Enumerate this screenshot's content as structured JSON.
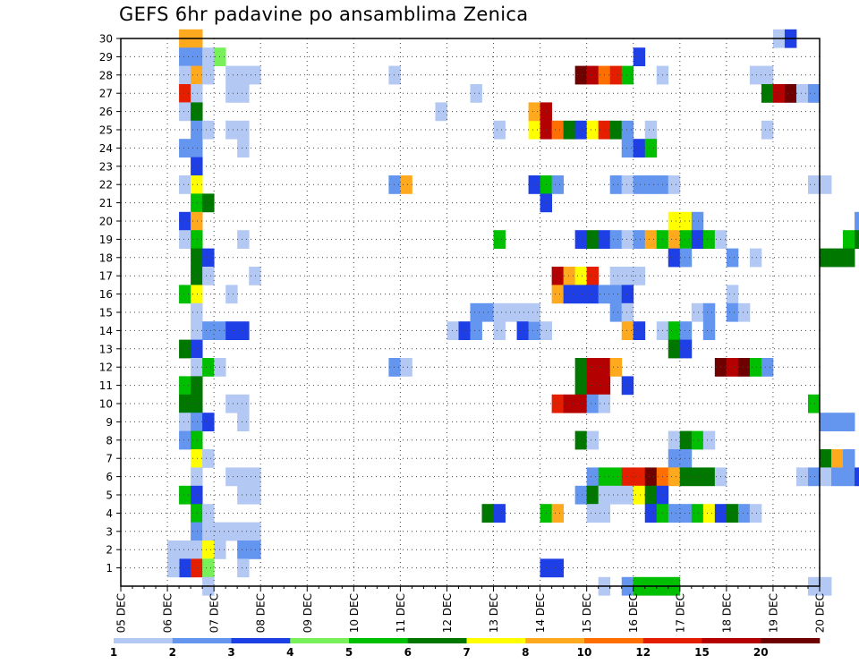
{
  "title": "GEFS 6hr padavine po ansamblima Zenica",
  "chart_data": {
    "type": "heatmap",
    "title": "GEFS 6hr padavine po ansamblima Zenica",
    "x_ticks": [
      "05 DEC",
      "06 DEC",
      "07 DEC",
      "08 DEC",
      "09 DEC",
      "10 DEC",
      "11 DEC",
      "12 DEC",
      "13 DEC",
      "14 DEC",
      "15 DEC",
      "16 DEC",
      "17 DEC",
      "18 DEC",
      "19 DEC",
      "20 DEC"
    ],
    "y_ticks": [
      1,
      2,
      3,
      4,
      5,
      6,
      7,
      8,
      9,
      10,
      11,
      12,
      13,
      14,
      15,
      16,
      17,
      18,
      19,
      20,
      21,
      22,
      23,
      24,
      25,
      26,
      27,
      28,
      29,
      30
    ],
    "xlim": [
      0,
      60
    ],
    "ylim": [
      0,
      30
    ],
    "grid": true,
    "cells_note": "cells: [x_step_index (6-hour steps from 05 DEC 00z), ensemble_member, class_index]",
    "legend": {
      "labels": [
        "1",
        "2",
        "3",
        "4",
        "5",
        "6",
        "7",
        "8",
        "10",
        "12",
        "15",
        "20"
      ],
      "colors": [
        "#b4c8f4",
        "#6496f0",
        "#1e3ee6",
        "#78f05a",
        "#00be00",
        "#007800",
        "#ffff00",
        "#ffaa1e",
        "#ff6e00",
        "#e61e00",
        "#b40000",
        "#6e0000"
      ]
    },
    "cells": [
      [
        5,
        30,
        7
      ],
      [
        5,
        29,
        1
      ],
      [
        5,
        28,
        0
      ],
      [
        5,
        27,
        9
      ],
      [
        5,
        26,
        0
      ],
      [
        5,
        24,
        1
      ],
      [
        5,
        22,
        0
      ],
      [
        5,
        20,
        2
      ],
      [
        5,
        19,
        0
      ],
      [
        5,
        16,
        4
      ],
      [
        5,
        13,
        5
      ],
      [
        5,
        11,
        4
      ],
      [
        5,
        10,
        5
      ],
      [
        5,
        9,
        0
      ],
      [
        5,
        8,
        1
      ],
      [
        5,
        5,
        4
      ],
      [
        5,
        2,
        0
      ],
      [
        5,
        1,
        2
      ],
      [
        4,
        1,
        0
      ],
      [
        4,
        2,
        0
      ],
      [
        6,
        30,
        7
      ],
      [
        6,
        29,
        1
      ],
      [
        6,
        28,
        7
      ],
      [
        6,
        27,
        0
      ],
      [
        6,
        26,
        5
      ],
      [
        6,
        25,
        1
      ],
      [
        6,
        24,
        1
      ],
      [
        6,
        23,
        2
      ],
      [
        6,
        22,
        6
      ],
      [
        6,
        21,
        4
      ],
      [
        6,
        20,
        7
      ],
      [
        6,
        19,
        4
      ],
      [
        6,
        18,
        5
      ],
      [
        6,
        17,
        5
      ],
      [
        6,
        16,
        6
      ],
      [
        6,
        15,
        0
      ],
      [
        6,
        14,
        0
      ],
      [
        6,
        13,
        2
      ],
      [
        6,
        12,
        0
      ],
      [
        6,
        11,
        5
      ],
      [
        6,
        10,
        5
      ],
      [
        6,
        9,
        1
      ],
      [
        6,
        8,
        4
      ],
      [
        6,
        7,
        6
      ],
      [
        6,
        6,
        0
      ],
      [
        6,
        5,
        2
      ],
      [
        6,
        4,
        4
      ],
      [
        6,
        3,
        1
      ],
      [
        6,
        2,
        0
      ],
      [
        6,
        1,
        9
      ],
      [
        7,
        29,
        0
      ],
      [
        7,
        28,
        0
      ],
      [
        7,
        25,
        0
      ],
      [
        7,
        21,
        5
      ],
      [
        7,
        18,
        2
      ],
      [
        7,
        17,
        0
      ],
      [
        7,
        14,
        1
      ],
      [
        7,
        12,
        4
      ],
      [
        7,
        9,
        2
      ],
      [
        7,
        7,
        0
      ],
      [
        7,
        4,
        0
      ],
      [
        7,
        3,
        0
      ],
      [
        7,
        2,
        6
      ],
      [
        7,
        1,
        3
      ],
      [
        7,
        0,
        0
      ],
      [
        8,
        29,
        3
      ],
      [
        8,
        14,
        1
      ],
      [
        8,
        12,
        0
      ],
      [
        8,
        3,
        0
      ],
      [
        8,
        2,
        0
      ],
      [
        9,
        28,
        0
      ],
      [
        9,
        27,
        0
      ],
      [
        9,
        25,
        0
      ],
      [
        9,
        16,
        0
      ],
      [
        9,
        14,
        2
      ],
      [
        9,
        10,
        0
      ],
      [
        9,
        6,
        0
      ],
      [
        9,
        3,
        0
      ],
      [
        10,
        28,
        0
      ],
      [
        10,
        27,
        0
      ],
      [
        10,
        25,
        0
      ],
      [
        10,
        24,
        0
      ],
      [
        10,
        19,
        0
      ],
      [
        10,
        14,
        2
      ],
      [
        10,
        10,
        0
      ],
      [
        10,
        9,
        0
      ],
      [
        10,
        6,
        0
      ],
      [
        10,
        5,
        0
      ],
      [
        10,
        3,
        0
      ],
      [
        10,
        2,
        1
      ],
      [
        10,
        1,
        0
      ],
      [
        11,
        28,
        0
      ],
      [
        11,
        17,
        0
      ],
      [
        11,
        6,
        0
      ],
      [
        11,
        5,
        0
      ],
      [
        11,
        3,
        0
      ],
      [
        11,
        2,
        1
      ],
      [
        23,
        28,
        0
      ],
      [
        23,
        22,
        1
      ],
      [
        23,
        12,
        1
      ],
      [
        24,
        22,
        7
      ],
      [
        24,
        12,
        0
      ],
      [
        27,
        26,
        0
      ],
      [
        28,
        14,
        0
      ],
      [
        29,
        14,
        2
      ],
      [
        30,
        27,
        0
      ],
      [
        30,
        15,
        1
      ],
      [
        30,
        14,
        1
      ],
      [
        31,
        15,
        1
      ],
      [
        32,
        25,
        0
      ],
      [
        32,
        19,
        4
      ],
      [
        32,
        15,
        0
      ],
      [
        32,
        14,
        0
      ],
      [
        31,
        4,
        5
      ],
      [
        32,
        4,
        2
      ],
      [
        33,
        15,
        0
      ],
      [
        34,
        15,
        0
      ],
      [
        34,
        14,
        2
      ],
      [
        35,
        14,
        1
      ],
      [
        35,
        25,
        6
      ],
      [
        35,
        26,
        7
      ],
      [
        35,
        22,
        2
      ],
      [
        35,
        15,
        0
      ],
      [
        36,
        25,
        10
      ],
      [
        36,
        26,
        10
      ],
      [
        36,
        22,
        4
      ],
      [
        36,
        21,
        2
      ],
      [
        36,
        14,
        0
      ],
      [
        36,
        4,
        4
      ],
      [
        36,
        1,
        2
      ],
      [
        37,
        25,
        8
      ],
      [
        37,
        22,
        1
      ],
      [
        37,
        17,
        10
      ],
      [
        37,
        16,
        7
      ],
      [
        37,
        10,
        9
      ],
      [
        37,
        4,
        7
      ],
      [
        37,
        1,
        2
      ],
      [
        38,
        25,
        5
      ],
      [
        38,
        17,
        7
      ],
      [
        38,
        16,
        2
      ],
      [
        38,
        10,
        10
      ],
      [
        39,
        28,
        11
      ],
      [
        39,
        25,
        2
      ],
      [
        39,
        19,
        2
      ],
      [
        39,
        17,
        6
      ],
      [
        39,
        16,
        2
      ],
      [
        39,
        12,
        5
      ],
      [
        39,
        11,
        5
      ],
      [
        39,
        10,
        10
      ],
      [
        39,
        8,
        5
      ],
      [
        39,
        5,
        1
      ],
      [
        40,
        28,
        10
      ],
      [
        40,
        25,
        6
      ],
      [
        40,
        19,
        5
      ],
      [
        40,
        17,
        9
      ],
      [
        40,
        16,
        2
      ],
      [
        40,
        12,
        10
      ],
      [
        40,
        11,
        10
      ],
      [
        40,
        10,
        1
      ],
      [
        40,
        8,
        0
      ],
      [
        40,
        6,
        1
      ],
      [
        40,
        5,
        5
      ],
      [
        40,
        4,
        0
      ],
      [
        41,
        28,
        8
      ],
      [
        41,
        25,
        9
      ],
      [
        41,
        19,
        2
      ],
      [
        41,
        16,
        1
      ],
      [
        41,
        12,
        10
      ],
      [
        41,
        11,
        10
      ],
      [
        41,
        10,
        0
      ],
      [
        41,
        6,
        4
      ],
      [
        41,
        5,
        0
      ],
      [
        41,
        4,
        0
      ],
      [
        41,
        0,
        0
      ],
      [
        42,
        28,
        9
      ],
      [
        42,
        25,
        5
      ],
      [
        42,
        22,
        1
      ],
      [
        42,
        19,
        1
      ],
      [
        42,
        17,
        0
      ],
      [
        42,
        16,
        1
      ],
      [
        42,
        15,
        1
      ],
      [
        42,
        12,
        7
      ],
      [
        42,
        6,
        4
      ],
      [
        42,
        5,
        0
      ],
      [
        43,
        28,
        4
      ],
      [
        43,
        25,
        1
      ],
      [
        43,
        24,
        1
      ],
      [
        43,
        22,
        0
      ],
      [
        43,
        19,
        0
      ],
      [
        43,
        17,
        0
      ],
      [
        43,
        16,
        2
      ],
      [
        43,
        15,
        0
      ],
      [
        43,
        14,
        7
      ],
      [
        43,
        11,
        2
      ],
      [
        43,
        6,
        9
      ],
      [
        43,
        5,
        0
      ],
      [
        43,
        0,
        1
      ],
      [
        44,
        29,
        2
      ],
      [
        44,
        24,
        2
      ],
      [
        44,
        22,
        1
      ],
      [
        44,
        19,
        1
      ],
      [
        44,
        17,
        0
      ],
      [
        44,
        14,
        2
      ],
      [
        44,
        6,
        9
      ],
      [
        44,
        5,
        6
      ],
      [
        44,
        0,
        4
      ],
      [
        45,
        25,
        0
      ],
      [
        45,
        24,
        4
      ],
      [
        45,
        22,
        1
      ],
      [
        45,
        19,
        7
      ],
      [
        45,
        6,
        11
      ],
      [
        45,
        5,
        5
      ],
      [
        45,
        4,
        2
      ],
      [
        45,
        0,
        4
      ],
      [
        46,
        28,
        0
      ],
      [
        46,
        22,
        1
      ],
      [
        46,
        19,
        4
      ],
      [
        46,
        14,
        0
      ],
      [
        46,
        6,
        8
      ],
      [
        46,
        5,
        2
      ],
      [
        46,
        4,
        4
      ],
      [
        46,
        0,
        4
      ],
      [
        47,
        22,
        0
      ],
      [
        47,
        20,
        6
      ],
      [
        47,
        19,
        7
      ],
      [
        47,
        18,
        2
      ],
      [
        47,
        14,
        4
      ],
      [
        47,
        13,
        5
      ],
      [
        47,
        8,
        0
      ],
      [
        47,
        7,
        1
      ],
      [
        47,
        6,
        7
      ],
      [
        47,
        4,
        1
      ],
      [
        47,
        0,
        4
      ],
      [
        48,
        20,
        6
      ],
      [
        48,
        19,
        4
      ],
      [
        48,
        18,
        1
      ],
      [
        48,
        14,
        1
      ],
      [
        48,
        13,
        2
      ],
      [
        48,
        8,
        5
      ],
      [
        48,
        7,
        1
      ],
      [
        48,
        6,
        5
      ],
      [
        48,
        4,
        1
      ],
      [
        49,
        20,
        1
      ],
      [
        49,
        19,
        2
      ],
      [
        49,
        15,
        0
      ],
      [
        49,
        8,
        4
      ],
      [
        49,
        6,
        5
      ],
      [
        49,
        4,
        4
      ],
      [
        50,
        19,
        4
      ],
      [
        50,
        15,
        1
      ],
      [
        50,
        14,
        1
      ],
      [
        50,
        8,
        0
      ],
      [
        50,
        6,
        5
      ],
      [
        50,
        4,
        6
      ],
      [
        51,
        19,
        0
      ],
      [
        51,
        12,
        11
      ],
      [
        51,
        6,
        0
      ],
      [
        51,
        4,
        2
      ],
      [
        52,
        18,
        1
      ],
      [
        52,
        16,
        0
      ],
      [
        52,
        15,
        1
      ],
      [
        52,
        12,
        10
      ],
      [
        52,
        4,
        5
      ],
      [
        53,
        15,
        0
      ],
      [
        53,
        12,
        11
      ],
      [
        53,
        4,
        1
      ],
      [
        54,
        28,
        0
      ],
      [
        54,
        18,
        0
      ],
      [
        54,
        12,
        4
      ],
      [
        54,
        4,
        0
      ],
      [
        55,
        28,
        0
      ],
      [
        55,
        27,
        5
      ],
      [
        55,
        25,
        0
      ],
      [
        55,
        12,
        1
      ],
      [
        56,
        30,
        0
      ],
      [
        56,
        27,
        10
      ],
      [
        57,
        30,
        2
      ],
      [
        57,
        27,
        11
      ],
      [
        58,
        27,
        0
      ],
      [
        58,
        6,
        0
      ],
      [
        59,
        27,
        1
      ],
      [
        59,
        22,
        0
      ],
      [
        59,
        10,
        4
      ],
      [
        59,
        6,
        1
      ],
      [
        59,
        0,
        0
      ],
      [
        60,
        22,
        0
      ],
      [
        60,
        18,
        5
      ],
      [
        60,
        9,
        1
      ],
      [
        60,
        7,
        5
      ],
      [
        60,
        6,
        0
      ],
      [
        60,
        0,
        0
      ],
      [
        61,
        18,
        5
      ],
      [
        61,
        9,
        1
      ],
      [
        61,
        7,
        7
      ],
      [
        61,
        6,
        1
      ],
      [
        62,
        19,
        4
      ],
      [
        62,
        18,
        5
      ],
      [
        62,
        9,
        1
      ],
      [
        62,
        7,
        1
      ],
      [
        62,
        6,
        1
      ],
      [
        63,
        20,
        1
      ],
      [
        63,
        19,
        5
      ],
      [
        63,
        6,
        2
      ]
    ]
  }
}
